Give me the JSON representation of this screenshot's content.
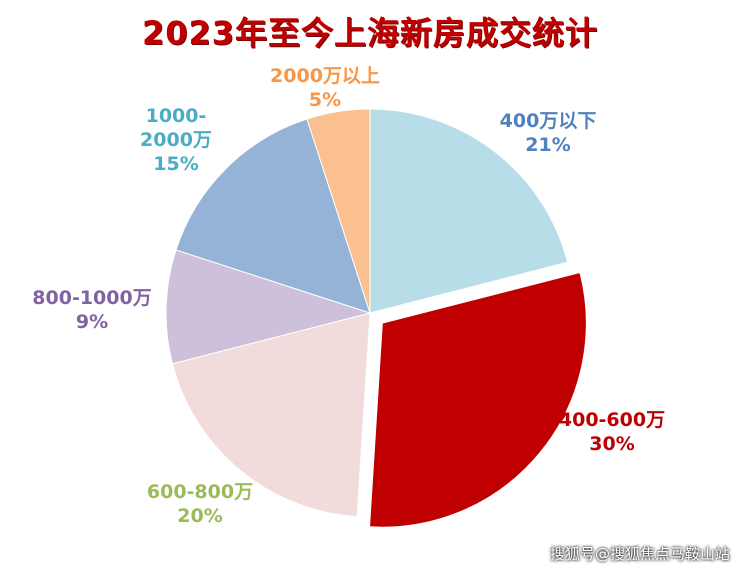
{
  "chart_data": {
    "type": "pie",
    "title": "2023年至今上海新房成交统计",
    "categories": [
      "400万以下",
      "400-600万",
      "600-800万",
      "800-1000万",
      "1000-2000万",
      "2000万以上"
    ],
    "values": [
      21,
      30,
      20,
      9,
      15,
      5
    ],
    "value_labels": [
      "21%",
      "30%",
      "20%",
      "9%",
      "15%",
      "5%"
    ],
    "colors": [
      "#b7dde8",
      "#c00000",
      "#f2dcdb",
      "#ccc0da",
      "#95b3d7",
      "#fac090"
    ],
    "label_colors": [
      "#4f81bd",
      "#c00000",
      "#9bbb59",
      "#8064a2",
      "#4bacc6",
      "#f79646"
    ],
    "watermark": "搜狐号@搜狐焦点马鞍山站"
  }
}
